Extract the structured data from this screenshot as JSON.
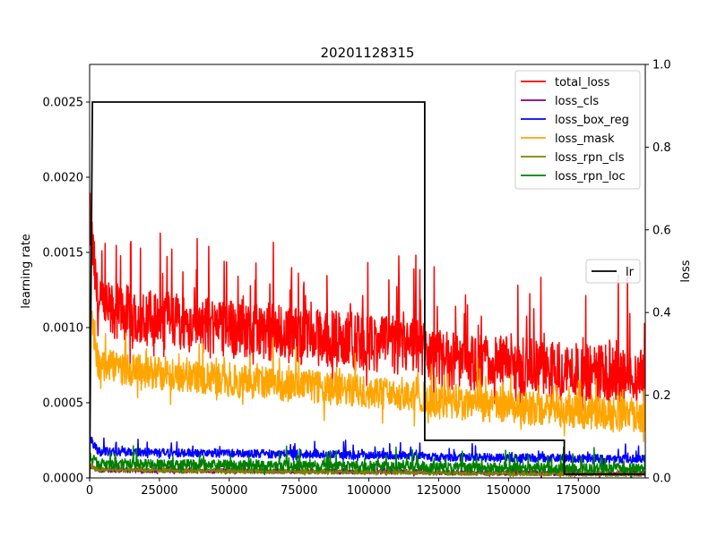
{
  "chart_data": {
    "type": "line",
    "title": "20201128315",
    "xlabel": "",
    "ylabel_left": "learning rate",
    "ylabel_right": "loss",
    "xlim": [
      0,
      199000
    ],
    "ylim_left": [
      0,
      0.00275
    ],
    "ylim_right": [
      0,
      1.0
    ],
    "x_ticks": [
      "0",
      "25000",
      "50000",
      "75000",
      "100000",
      "125000",
      "150000",
      "175000"
    ],
    "y_left_ticks": [
      "0.0000",
      "0.0005",
      "0.0010",
      "0.0015",
      "0.0020",
      "0.0025"
    ],
    "y_right_ticks": [
      "0.0",
      "0.2",
      "0.4",
      "0.6",
      "0.8",
      "1.0"
    ],
    "grid": false,
    "legend_loss_position": "top-right",
    "legend_lr_position": "center-right",
    "lr_series": {
      "name": "lr",
      "color": "#000000",
      "axis": "left",
      "points": [
        [
          0,
          0.0
        ],
        [
          1000,
          0.0025
        ],
        [
          120000,
          0.0025
        ],
        [
          120000,
          0.00025
        ],
        [
          170000,
          0.00025
        ],
        [
          170000,
          2.5e-05
        ],
        [
          199000,
          2.5e-05
        ]
      ]
    },
    "loss_series": [
      {
        "name": "total_loss",
        "color": "#ff0000",
        "axis": "right",
        "start": 0.42,
        "end": 0.27,
        "step_at": 120000,
        "step_drop": 0.05,
        "spread": 0.07,
        "spikes": 0.2
      },
      {
        "name": "loss_cls",
        "color": "#800080",
        "axis": "right",
        "start": 0.02,
        "end": 0.012,
        "step_at": 120000,
        "step_drop": 0.003,
        "spread": 0.006,
        "spikes": 0.01
      },
      {
        "name": "loss_box_reg",
        "color": "#0000ff",
        "axis": "right",
        "start": 0.065,
        "end": 0.05,
        "step_at": 120000,
        "step_drop": 0.008,
        "spread": 0.01,
        "spikes": 0.03
      },
      {
        "name": "loss_mask",
        "color": "#ffa500",
        "axis": "right",
        "start": 0.28,
        "end": 0.165,
        "step_at": 120000,
        "step_drop": 0.03,
        "spread": 0.04,
        "spikes": 0.08
      },
      {
        "name": "loss_rpn_cls",
        "color": "#808000",
        "axis": "right",
        "start": 0.02,
        "end": 0.01,
        "step_at": 120000,
        "step_drop": 0.003,
        "spread": 0.005,
        "spikes": 0.01
      },
      {
        "name": "loss_rpn_loc",
        "color": "#008000",
        "axis": "right",
        "start": 0.035,
        "end": 0.025,
        "step_at": 120000,
        "step_drop": 0.005,
        "spread": 0.012,
        "spikes": 0.04
      }
    ]
  }
}
